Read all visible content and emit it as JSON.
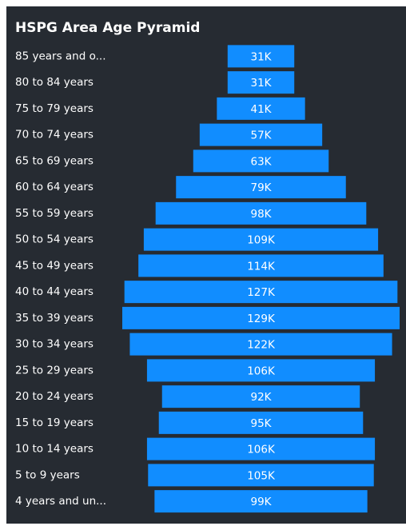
{
  "chart_data": {
    "type": "funnel",
    "title": "HSPG Area Age Pyramid",
    "categories": [
      "85 years and o...",
      "80 to 84 years",
      "75 to 79 years",
      "70 to 74 years",
      "65 to 69 years",
      "60 to 64 years",
      "55 to 59 years",
      "50 to 54 years",
      "45 to 49 years",
      "40 to 44 years",
      "35 to 39 years",
      "30 to 34 years",
      "25 to 29 years",
      "20 to 24 years",
      "15 to 19 years",
      "10 to 14 years",
      "5 to 9 years",
      "4 years and un..."
    ],
    "values": [
      31,
      31,
      41,
      57,
      63,
      79,
      98,
      109,
      114,
      127,
      129,
      122,
      106,
      92,
      95,
      106,
      105,
      99
    ],
    "value_labels": [
      "31K",
      "31K",
      "41K",
      "57K",
      "63K",
      "79K",
      "98K",
      "109K",
      "114K",
      "127K",
      "129K",
      "122K",
      "106K",
      "92K",
      "95K",
      "106K",
      "105K",
      "99K"
    ],
    "color": "#118dff"
  }
}
